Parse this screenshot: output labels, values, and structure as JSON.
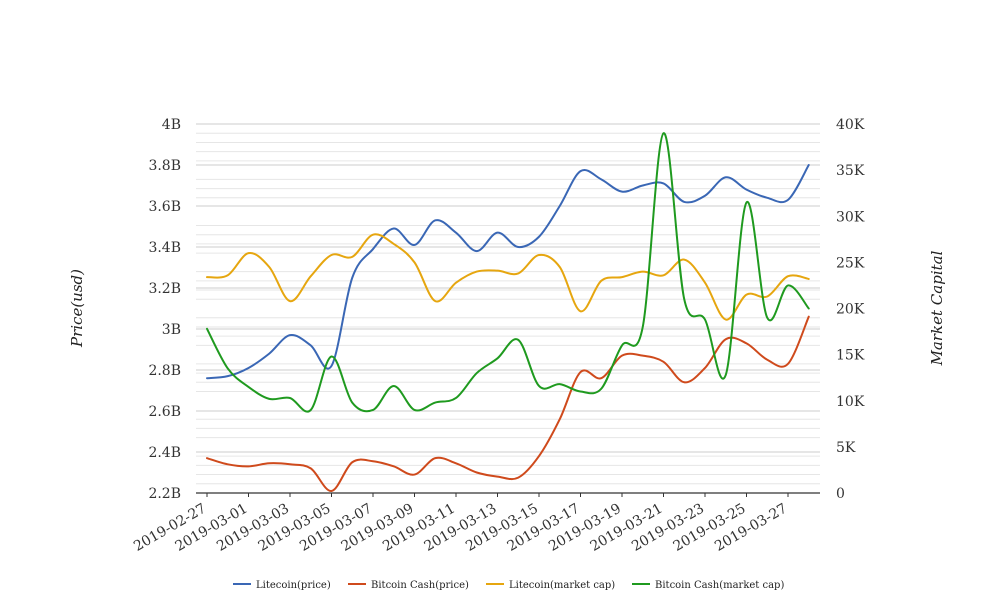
{
  "chart_data": {
    "type": "line",
    "title": "",
    "xlabel": "",
    "ylabel": "Price(usd)",
    "y2label": "Market Capital",
    "ylim": [
      2.2,
      4.0
    ],
    "y2lim": [
      0,
      40000
    ],
    "x_tick_labels": [
      "2019-02-27",
      "2019-03-01",
      "2019-03-03",
      "2019-03-05",
      "2019-03-07",
      "2019-03-09",
      "2019-03-11",
      "2019-03-13",
      "2019-03-15",
      "2019-03-17",
      "2019-03-19",
      "2019-03-21",
      "2019-03-23",
      "2019-03-25",
      "2019-03-27"
    ],
    "y_tick_labels": [
      "4B",
      "3.8B",
      "3.6B",
      "3.4B",
      "3.2B",
      "3B",
      "2.8B",
      "2.6B",
      "2.4B",
      "2.2B"
    ],
    "y_tick_values": [
      4.0,
      3.8,
      3.6,
      3.4,
      3.2,
      3.0,
      2.8,
      2.6,
      2.4,
      2.2
    ],
    "y2_tick_labels": [
      "40K",
      "35K",
      "30K",
      "25K",
      "20K",
      "15K",
      "10K",
      "5K",
      "0"
    ],
    "y2_tick_values": [
      40000,
      35000,
      30000,
      25000,
      20000,
      15000,
      10000,
      5000,
      0
    ],
    "grid": true,
    "legend_position": "bottom",
    "x": [
      "2019-02-27",
      "2019-02-28",
      "2019-03-01",
      "2019-03-02",
      "2019-03-03",
      "2019-03-04",
      "2019-03-05",
      "2019-03-06",
      "2019-03-07",
      "2019-03-08",
      "2019-03-09",
      "2019-03-10",
      "2019-03-11",
      "2019-03-12",
      "2019-03-13",
      "2019-03-14",
      "2019-03-15",
      "2019-03-16",
      "2019-03-17",
      "2019-03-18",
      "2019-03-19",
      "2019-03-20",
      "2019-03-21",
      "2019-03-22",
      "2019-03-23",
      "2019-03-24",
      "2019-03-25",
      "2019-03-26",
      "2019-03-27",
      "2019-03-28"
    ],
    "series": [
      {
        "name": "Litecoin(price)",
        "axis": "left",
        "color": "#3a67b5",
        "values": [
          2.76,
          2.77,
          2.81,
          2.88,
          2.97,
          2.92,
          2.82,
          3.25,
          3.39,
          3.49,
          3.41,
          3.53,
          3.47,
          3.38,
          3.47,
          3.4,
          3.45,
          3.6,
          3.77,
          3.73,
          3.67,
          3.7,
          3.71,
          3.62,
          3.65,
          3.74,
          3.68,
          3.64,
          3.63,
          3.8
        ]
      },
      {
        "name": "Bitcoin Cash(price)",
        "axis": "left",
        "color": "#cf4a1c",
        "values": [
          2.37,
          2.34,
          2.33,
          2.345,
          2.34,
          2.32,
          2.21,
          2.35,
          2.355,
          2.33,
          2.29,
          2.37,
          2.345,
          2.3,
          2.28,
          2.275,
          2.38,
          2.56,
          2.79,
          2.76,
          2.87,
          2.87,
          2.84,
          2.74,
          2.81,
          2.95,
          2.93,
          2.85,
          2.83,
          3.06
        ]
      },
      {
        "name": "Litecoin(market cap)",
        "axis": "right",
        "color": "#e6a60f",
        "values": [
          23400,
          23600,
          26000,
          24500,
          20800,
          23500,
          25800,
          25600,
          28000,
          27000,
          25000,
          20800,
          22800,
          24000,
          24100,
          23800,
          25800,
          24500,
          19700,
          23000,
          23400,
          24000,
          23600,
          25300,
          22800,
          18800,
          21500,
          21300,
          23500,
          23200
        ]
      },
      {
        "name": "Bitcoin Cash(market cap)",
        "axis": "right",
        "color": "#1f9a1f",
        "values": [
          17800,
          13500,
          11500,
          10200,
          10300,
          9000,
          14800,
          9800,
          9000,
          11600,
          9000,
          9800,
          10300,
          13000,
          14600,
          16600,
          11600,
          11800,
          11000,
          11300,
          16000,
          18000,
          39000,
          21000,
          18800,
          12800,
          31500,
          19000,
          22500,
          20000
        ]
      }
    ]
  }
}
